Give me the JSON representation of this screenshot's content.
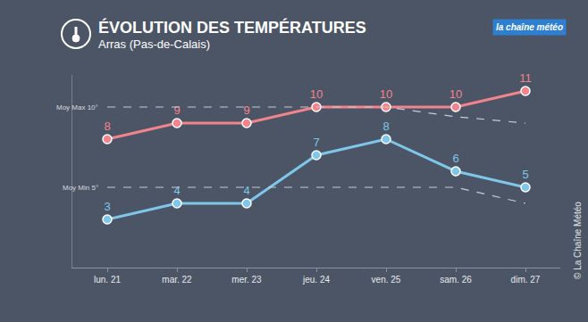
{
  "chart_data": {
    "type": "line",
    "title": "ÉVOLUTION DES TEMPÉRATURES",
    "subtitle": "Arras (Pas-de-Calais)",
    "logo": "la chaîne météo",
    "credit": "© La Chaîne Météo",
    "categories": [
      "lun. 21",
      "mar. 22",
      "mer. 23",
      "jeu. 24",
      "ven. 25",
      "sam. 26",
      "dim. 27"
    ],
    "series": [
      {
        "color": "#f3848d",
        "values": [
          8,
          9,
          9,
          10,
          10,
          10,
          11
        ],
        "data_labels": true,
        "marker": "circle",
        "line_style": "solid"
      },
      {
        "color": "#7fc6ea",
        "values": [
          3,
          4,
          4,
          7,
          8,
          6,
          5
        ],
        "data_labels": true,
        "marker": "circle",
        "line_style": "solid"
      },
      {
        "name": "Moy Max 10°",
        "color": "#c9ccd2",
        "values": [
          10,
          10,
          10,
          10,
          10,
          9.4,
          9
        ],
        "data_labels": false,
        "line_style": "dashed"
      },
      {
        "name": "Moy Min 5°",
        "color": "#c9ccd2",
        "values": [
          5,
          5,
          5,
          5,
          5,
          5,
          4
        ],
        "data_labels": false,
        "line_style": "dashed"
      }
    ],
    "ylim": [
      0,
      12
    ],
    "tick_labels": "x",
    "grid": false
  }
}
